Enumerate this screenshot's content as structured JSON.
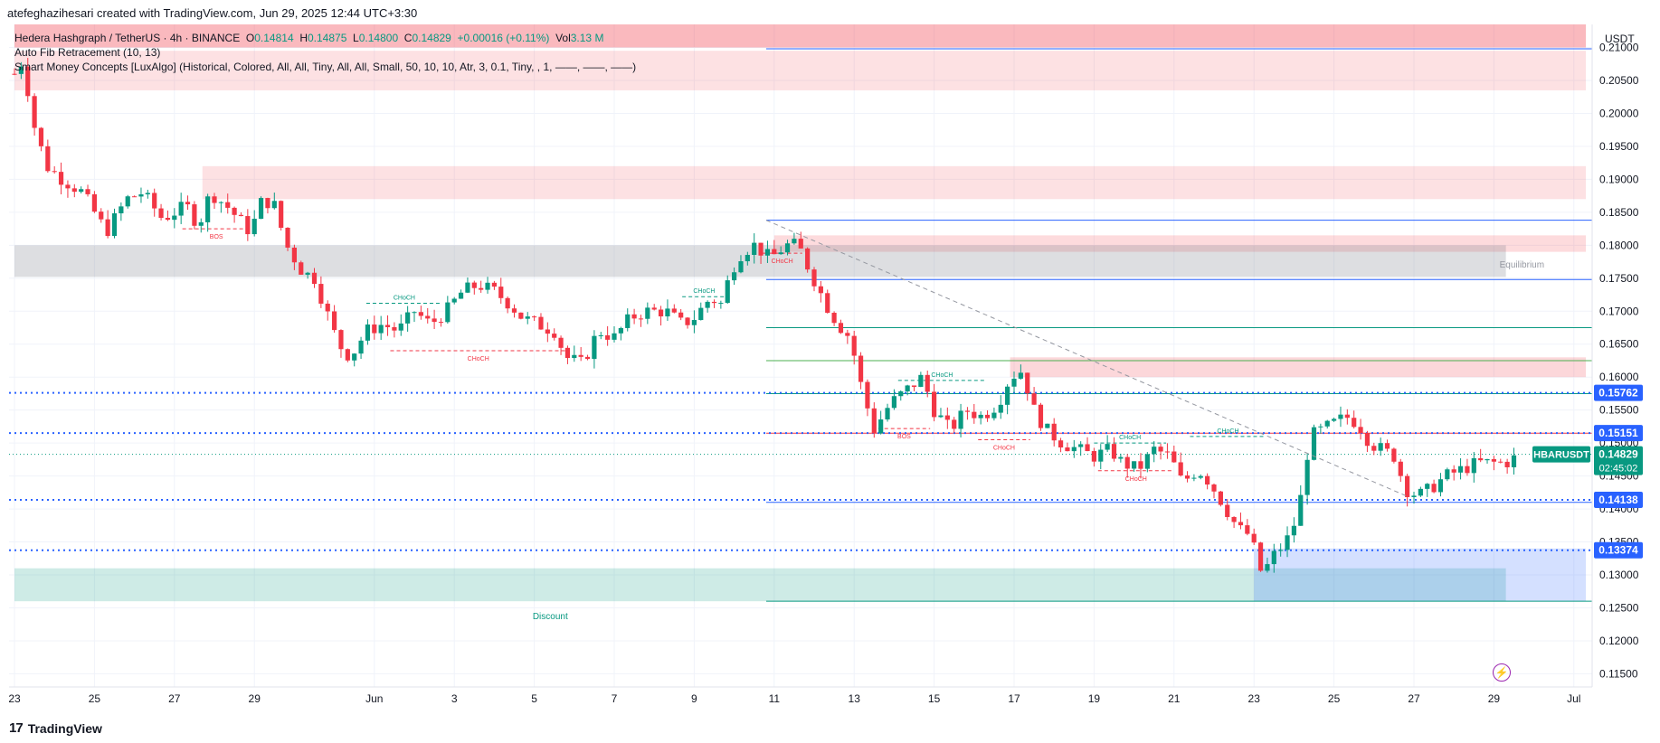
{
  "header": {
    "author_line": "atefeghazihesari created with TradingView.com, Jun 29, 2025 12:44 UTC+3:30",
    "symbol_title": "Hedera Hashgraph / TetherUS · 4h · BINANCE",
    "ohlc": {
      "o_label": "O",
      "o": "0.14814",
      "h_label": "H",
      "h": "0.14875",
      "l_label": "L",
      "l": "0.14800",
      "c_label": "C",
      "c": "0.14829",
      "change": "+0.00016 (+0.11%)",
      "vol_label": "Vol",
      "vol": "3.13 M"
    },
    "indicator_1": "Auto Fib Retracement (10, 13)",
    "indicator_2": "Smart Money Concepts [LuxAlgo] (Historical, Colored, All, All, Tiny, All, All, Small, 50, 10, 10, Atr, 3, 0.1, Tiny, , 1, ——, ——, ——)"
  },
  "axis": {
    "currency": "USDT"
  },
  "footer": {
    "brand": "TradingView",
    "logo_glyph": "17"
  },
  "colors": {
    "bull": "#089981",
    "bear": "#f23645",
    "blue": "#2962ff",
    "premium_zone": "#f23645",
    "discount_zone": "#089981",
    "equilibrium_zone": "#787b86"
  },
  "chart_data": {
    "type": "candlestick",
    "symbol": "HBARUSDT",
    "timeframe": "4h",
    "ylim": [
      0.113,
      0.2135
    ],
    "y_ticks": [
      0.115,
      0.12,
      0.125,
      0.13,
      0.135,
      0.14,
      0.145,
      0.15,
      0.155,
      0.16,
      0.165,
      0.17,
      0.175,
      0.18,
      0.185,
      0.19,
      0.195,
      0.2,
      0.205,
      0.21
    ],
    "x_ticks": [
      {
        "label": "23",
        "day": 0
      },
      {
        "label": "25",
        "day": 2
      },
      {
        "label": "27",
        "day": 4
      },
      {
        "label": "29",
        "day": 6
      },
      {
        "label": "Jun",
        "day": 9
      },
      {
        "label": "3",
        "day": 11
      },
      {
        "label": "5",
        "day": 13
      },
      {
        "label": "7",
        "day": 15
      },
      {
        "label": "9",
        "day": 17
      },
      {
        "label": "11",
        "day": 19
      },
      {
        "label": "13",
        "day": 21
      },
      {
        "label": "15",
        "day": 23
      },
      {
        "label": "17",
        "day": 25
      },
      {
        "label": "19",
        "day": 27
      },
      {
        "label": "21",
        "day": 29
      },
      {
        "label": "23",
        "day": 31
      },
      {
        "label": "25",
        "day": 33
      },
      {
        "label": "27",
        "day": 35
      },
      {
        "label": "29",
        "day": 37
      },
      {
        "label": "Jul",
        "day": 39
      }
    ],
    "price_path": [
      [
        0.0,
        0.206
      ],
      [
        0.2,
        0.208
      ],
      [
        0.5,
        0.198
      ],
      [
        0.8,
        0.192
      ],
      [
        1.2,
        0.19
      ],
      [
        1.7,
        0.188
      ],
      [
        2.3,
        0.182
      ],
      [
        2.8,
        0.187
      ],
      [
        3.2,
        0.188
      ],
      [
        3.7,
        0.184
      ],
      [
        4.3,
        0.186
      ],
      [
        4.6,
        0.183
      ],
      [
        4.9,
        0.188
      ],
      [
        5.3,
        0.186
      ],
      [
        5.6,
        0.184
      ],
      [
        5.9,
        0.182
      ],
      [
        6.2,
        0.187
      ],
      [
        6.5,
        0.186
      ],
      [
        6.8,
        0.18
      ],
      [
        7.2,
        0.176
      ],
      [
        7.5,
        0.175
      ],
      [
        7.8,
        0.17
      ],
      [
        8.1,
        0.165
      ],
      [
        8.4,
        0.163
      ],
      [
        8.8,
        0.167
      ],
      [
        9.2,
        0.168
      ],
      [
        9.6,
        0.167
      ],
      [
        10.0,
        0.17
      ],
      [
        10.4,
        0.168
      ],
      [
        10.8,
        0.17
      ],
      [
        11.2,
        0.173
      ],
      [
        11.6,
        0.174
      ],
      [
        12.0,
        0.173
      ],
      [
        12.4,
        0.171
      ],
      [
        12.7,
        0.169
      ],
      [
        13.1,
        0.168
      ],
      [
        13.5,
        0.167
      ],
      [
        13.8,
        0.163
      ],
      [
        14.2,
        0.162
      ],
      [
        14.6,
        0.167
      ],
      [
        15.0,
        0.166
      ],
      [
        15.4,
        0.169
      ],
      [
        15.8,
        0.17
      ],
      [
        16.3,
        0.17
      ],
      [
        16.7,
        0.168
      ],
      [
        17.0,
        0.169
      ],
      [
        17.4,
        0.172
      ],
      [
        17.7,
        0.171
      ],
      [
        17.9,
        0.176
      ],
      [
        18.2,
        0.179
      ],
      [
        18.5,
        0.18
      ],
      [
        18.9,
        0.178
      ],
      [
        19.3,
        0.18
      ],
      [
        19.6,
        0.18
      ],
      [
        19.9,
        0.176
      ],
      [
        20.3,
        0.171
      ],
      [
        20.6,
        0.168
      ],
      [
        20.9,
        0.166
      ],
      [
        21.2,
        0.158
      ],
      [
        21.5,
        0.152
      ],
      [
        21.9,
        0.156
      ],
      [
        22.3,
        0.158
      ],
      [
        22.7,
        0.16
      ],
      [
        23.0,
        0.155
      ],
      [
        23.4,
        0.152
      ],
      [
        23.8,
        0.155
      ],
      [
        24.2,
        0.154
      ],
      [
        24.6,
        0.156
      ],
      [
        24.9,
        0.16
      ],
      [
        25.2,
        0.161
      ],
      [
        25.5,
        0.155
      ],
      [
        25.8,
        0.152
      ],
      [
        26.2,
        0.15
      ],
      [
        26.6,
        0.149
      ],
      [
        27.0,
        0.148
      ],
      [
        27.4,
        0.149
      ],
      [
        27.7,
        0.147
      ],
      [
        28.1,
        0.146
      ],
      [
        28.5,
        0.149
      ],
      [
        28.9,
        0.148
      ],
      [
        29.2,
        0.144
      ],
      [
        29.6,
        0.146
      ],
      [
        29.9,
        0.144
      ],
      [
        30.3,
        0.14
      ],
      [
        30.6,
        0.137
      ],
      [
        30.9,
        0.136
      ],
      [
        31.2,
        0.13
      ],
      [
        31.5,
        0.133
      ],
      [
        31.8,
        0.135
      ],
      [
        32.1,
        0.139
      ],
      [
        32.4,
        0.151
      ],
      [
        32.7,
        0.152
      ],
      [
        33.0,
        0.153
      ],
      [
        33.3,
        0.154
      ],
      [
        33.6,
        0.153
      ],
      [
        33.9,
        0.15
      ],
      [
        34.2,
        0.149
      ],
      [
        34.5,
        0.148
      ],
      [
        34.8,
        0.143
      ],
      [
        35.1,
        0.142
      ],
      [
        35.4,
        0.143
      ],
      [
        35.8,
        0.145
      ],
      [
        36.2,
        0.146
      ],
      [
        36.6,
        0.147
      ],
      [
        37.0,
        0.147
      ],
      [
        37.3,
        0.147
      ],
      [
        37.6,
        0.148
      ]
    ],
    "price_lines": [
      {
        "label": "0.15762",
        "value": 0.15762,
        "color": "#2962ff",
        "style": "dotted",
        "start_day": 0
      },
      {
        "label": "0.15151",
        "value": 0.15151,
        "color": "#2962ff",
        "style": "dotted",
        "start_day": 0
      },
      {
        "label": "0.14138",
        "value": 0.14138,
        "color": "#2962ff",
        "style": "dotted",
        "start_day": 0
      },
      {
        "label": "0.13374",
        "value": 0.13374,
        "color": "#2962ff",
        "style": "dotted",
        "start_day": 0
      }
    ],
    "current_price": {
      "symbol": "HBARUSDT",
      "price": "0.14829",
      "countdown": "02:45:02",
      "value": 0.14829,
      "color": "#089981"
    },
    "fib_levels": [
      {
        "value": 0.2098,
        "color": "#2962ff"
      },
      {
        "value": 0.1838,
        "color": "#2962ff"
      },
      {
        "value": 0.1748,
        "color": "#2962ff"
      },
      {
        "value": 0.1675,
        "color": "#089981"
      },
      {
        "value": 0.1625,
        "color": "#4caf50"
      },
      {
        "value": 0.1575,
        "color": "#089981"
      },
      {
        "value": 0.1515,
        "color": "#f23645"
      },
      {
        "value": 0.141,
        "color": "#2962ff"
      },
      {
        "value": 0.126,
        "color": "#089981"
      }
    ],
    "zones": [
      {
        "kind": "supply",
        "from_day": 0,
        "to_day": 39.3,
        "top": 0.2135,
        "bottom": 0.21,
        "opacity": 0.35
      },
      {
        "kind": "supply",
        "from_day": 0,
        "to_day": 39.3,
        "top": 0.2095,
        "bottom": 0.2035,
        "opacity": 0.15
      },
      {
        "kind": "supply",
        "from_day": 4.7,
        "to_day": 39.3,
        "top": 0.192,
        "bottom": 0.187,
        "opacity": 0.15
      },
      {
        "kind": "supply",
        "from_day": 19.0,
        "to_day": 39.3,
        "top": 0.1815,
        "bottom": 0.179,
        "opacity": 0.18
      },
      {
        "kind": "supply",
        "from_day": 24.9,
        "to_day": 39.3,
        "top": 0.163,
        "bottom": 0.16,
        "opacity": 0.2
      },
      {
        "kind": "equilibrium",
        "from_day": 0,
        "to_day": 37.3,
        "top": 0.18,
        "bottom": 0.1752,
        "opacity": 0.25
      },
      {
        "kind": "discount",
        "from_day": 0,
        "to_day": 37.3,
        "top": 0.131,
        "bottom": 0.126,
        "opacity": 0.2
      },
      {
        "kind": "demand",
        "from_day": 31.0,
        "to_day": 39.3,
        "top": 0.134,
        "bottom": 0.126,
        "opacity": 0.2
      }
    ],
    "zone_labels": [
      {
        "text": "Equilibrium",
        "day": 37.7,
        "value": 0.1772,
        "color": "#9598a1"
      },
      {
        "text": "Discount",
        "day": 13.4,
        "value": 0.1238,
        "color": "#089981"
      }
    ],
    "trendline": {
      "from": [
        18.8,
        0.1838
      ],
      "to": [
        34.8,
        0.142
      ],
      "color": "#9598a1"
    },
    "structure_breaks": [
      {
        "text": "BOS",
        "from_day": 4.2,
        "to_day": 5.9,
        "value": 0.1825,
        "color": "#f23645",
        "label_below": true
      },
      {
        "text": "CHoCH",
        "from_day": 8.8,
        "to_day": 10.7,
        "value": 0.1712,
        "color": "#089981",
        "label_below": false
      },
      {
        "text": "CHoCH",
        "from_day": 9.4,
        "to_day": 13.8,
        "value": 0.164,
        "color": "#f23645",
        "label_below": true
      },
      {
        "text": "CHoCH",
        "from_day": 16.7,
        "to_day": 17.8,
        "value": 0.1722,
        "color": "#089981",
        "label_below": false
      },
      {
        "text": "CHoCH",
        "from_day": 18.7,
        "to_day": 19.7,
        "value": 0.1788,
        "color": "#f23645",
        "label_below": true
      },
      {
        "text": "CHoCH",
        "from_day": 22.1,
        "to_day": 24.3,
        "value": 0.1595,
        "color": "#089981",
        "label_below": false
      },
      {
        "text": "BOS",
        "from_day": 21.6,
        "to_day": 22.9,
        "value": 0.1522,
        "color": "#f23645",
        "label_below": true
      },
      {
        "text": "CHoCH",
        "from_day": 24.1,
        "to_day": 25.4,
        "value": 0.1505,
        "color": "#f23645",
        "label_below": true
      },
      {
        "text": "CHoCH",
        "from_day": 27.0,
        "to_day": 28.8,
        "value": 0.15,
        "color": "#089981",
        "label_below": false
      },
      {
        "text": "CHoCH",
        "from_day": 27.1,
        "to_day": 29.0,
        "value": 0.1458,
        "color": "#f23645",
        "label_below": true
      },
      {
        "text": "CHoCH",
        "from_day": 29.4,
        "to_day": 31.3,
        "value": 0.151,
        "color": "#089981",
        "label_below": false
      }
    ]
  }
}
